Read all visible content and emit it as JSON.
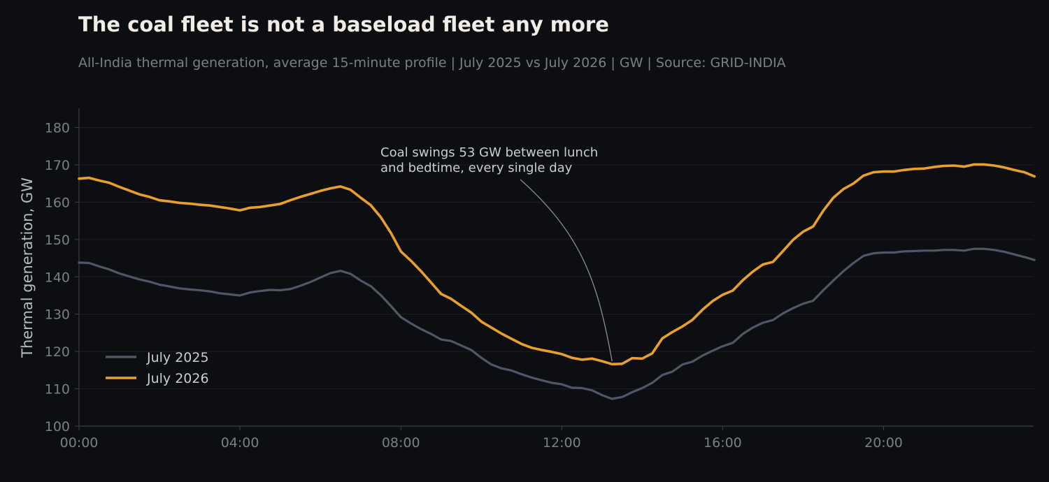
{
  "header": {
    "title": "The coal fleet is not a baseload fleet any more",
    "subtitle": "All-India thermal generation, average 15-minute profile | July 2025 vs July 2026 | GW | Source: GRID-INDIA"
  },
  "chart_data": {
    "type": "line",
    "ylabel": "Thermal generation, GW",
    "xlabel": "",
    "x_ticks": [
      "00:00",
      "04:00",
      "08:00",
      "12:00",
      "16:00",
      "20:00"
    ],
    "x_tick_hours": [
      0,
      4,
      8,
      12,
      16,
      20
    ],
    "xlim_hours": [
      0,
      23.75
    ],
    "ylim": [
      100,
      185
    ],
    "y_ticks": [
      100,
      110,
      120,
      130,
      140,
      150,
      160,
      170,
      180
    ],
    "grid": "horizontal",
    "legend": "lower-left",
    "x_hours": [
      0,
      0.25,
      0.5,
      0.75,
      1,
      1.25,
      1.5,
      1.75,
      2,
      2.25,
      2.5,
      2.75,
      3,
      3.25,
      3.5,
      3.75,
      4,
      4.25,
      4.5,
      4.75,
      5,
      5.25,
      5.5,
      5.75,
      6,
      6.25,
      6.5,
      6.75,
      7,
      7.25,
      7.5,
      7.75,
      8,
      8.25,
      8.5,
      8.75,
      9,
      9.25,
      9.5,
      9.75,
      10,
      10.25,
      10.5,
      10.75,
      11,
      11.25,
      11.5,
      11.75,
      12,
      12.25,
      12.5,
      12.75,
      13,
      13.25,
      13.5,
      13.75,
      14,
      14.25,
      14.5,
      14.75,
      15,
      15.25,
      15.5,
      15.75,
      16,
      16.25,
      16.5,
      16.75,
      17,
      17.25,
      17.5,
      17.75,
      18,
      18.25,
      18.5,
      18.75,
      19,
      19.25,
      19.5,
      19.75,
      20,
      20.25,
      20.5,
      20.75,
      21,
      21.25,
      21.5,
      21.75,
      22,
      22.25,
      22.5,
      22.75,
      23,
      23.25,
      23.5,
      23.75
    ],
    "series": [
      {
        "name": "July 2025",
        "color": "#4f5666",
        "values": [
          143.8,
          143.7,
          142.8,
          142.0,
          140.9,
          140.1,
          139.3,
          138.7,
          137.9,
          137.4,
          136.9,
          136.6,
          136.4,
          136.1,
          135.6,
          135.3,
          135.0,
          135.8,
          136.2,
          136.5,
          136.4,
          136.7,
          137.6,
          138.6,
          139.8,
          141.0,
          141.6,
          140.8,
          139.0,
          137.5,
          135.1,
          132.2,
          129.2,
          127.5,
          126.0,
          124.7,
          123.2,
          122.8,
          121.6,
          120.4,
          118.3,
          116.5,
          115.5,
          114.9,
          113.9,
          113.0,
          112.3,
          111.6,
          111.2,
          110.3,
          110.2,
          109.6,
          108.3,
          107.3,
          107.8,
          109.1,
          110.2,
          111.6,
          113.7,
          114.6,
          116.5,
          117.3,
          118.9,
          120.2,
          121.4,
          122.3,
          124.7,
          126.4,
          127.7,
          128.4,
          130.2,
          131.6,
          132.8,
          133.6,
          136.4,
          139.0,
          141.5,
          143.7,
          145.6,
          146.3,
          146.5,
          146.5,
          146.8,
          146.9,
          147.0,
          147.0,
          147.2,
          147.2,
          147.0,
          147.5,
          147.5,
          147.2,
          146.7,
          146.0,
          145.3,
          144.5
        ]
      },
      {
        "name": "July 2026",
        "color": "#e8a02a",
        "values": [
          166.3,
          166.5,
          165.8,
          165.2,
          164.1,
          163.1,
          162.1,
          161.4,
          160.5,
          160.2,
          159.8,
          159.6,
          159.3,
          159.1,
          158.7,
          158.3,
          157.8,
          158.5,
          158.7,
          159.1,
          159.5,
          160.5,
          161.4,
          162.2,
          163.0,
          163.7,
          164.2,
          163.3,
          161.2,
          159.2,
          156.0,
          151.8,
          146.8,
          144.3,
          141.5,
          138.5,
          135.4,
          134.1,
          132.2,
          130.4,
          128.0,
          126.4,
          124.8,
          123.4,
          122.0,
          121.0,
          120.4,
          119.9,
          119.3,
          118.3,
          117.8,
          118.1,
          117.4,
          116.6,
          116.7,
          118.2,
          118.1,
          119.5,
          123.5,
          125.2,
          126.7,
          128.5,
          131.2,
          133.5,
          135.2,
          136.3,
          139.1,
          141.4,
          143.3,
          144.0,
          146.9,
          149.9,
          152.1,
          153.5,
          157.7,
          161.2,
          163.5,
          165.0,
          167.1,
          168.0,
          168.2,
          168.2,
          168.6,
          168.9,
          169.0,
          169.4,
          169.7,
          169.8,
          169.5,
          170.1,
          170.1,
          169.8,
          169.3,
          168.6,
          168.0,
          166.9
        ]
      }
    ],
    "annotation": {
      "lines": [
        "Coal swings 53 GW between lunch",
        "and bedtime, every single day"
      ],
      "target_hour": 13.25,
      "target_value": 117
    }
  }
}
